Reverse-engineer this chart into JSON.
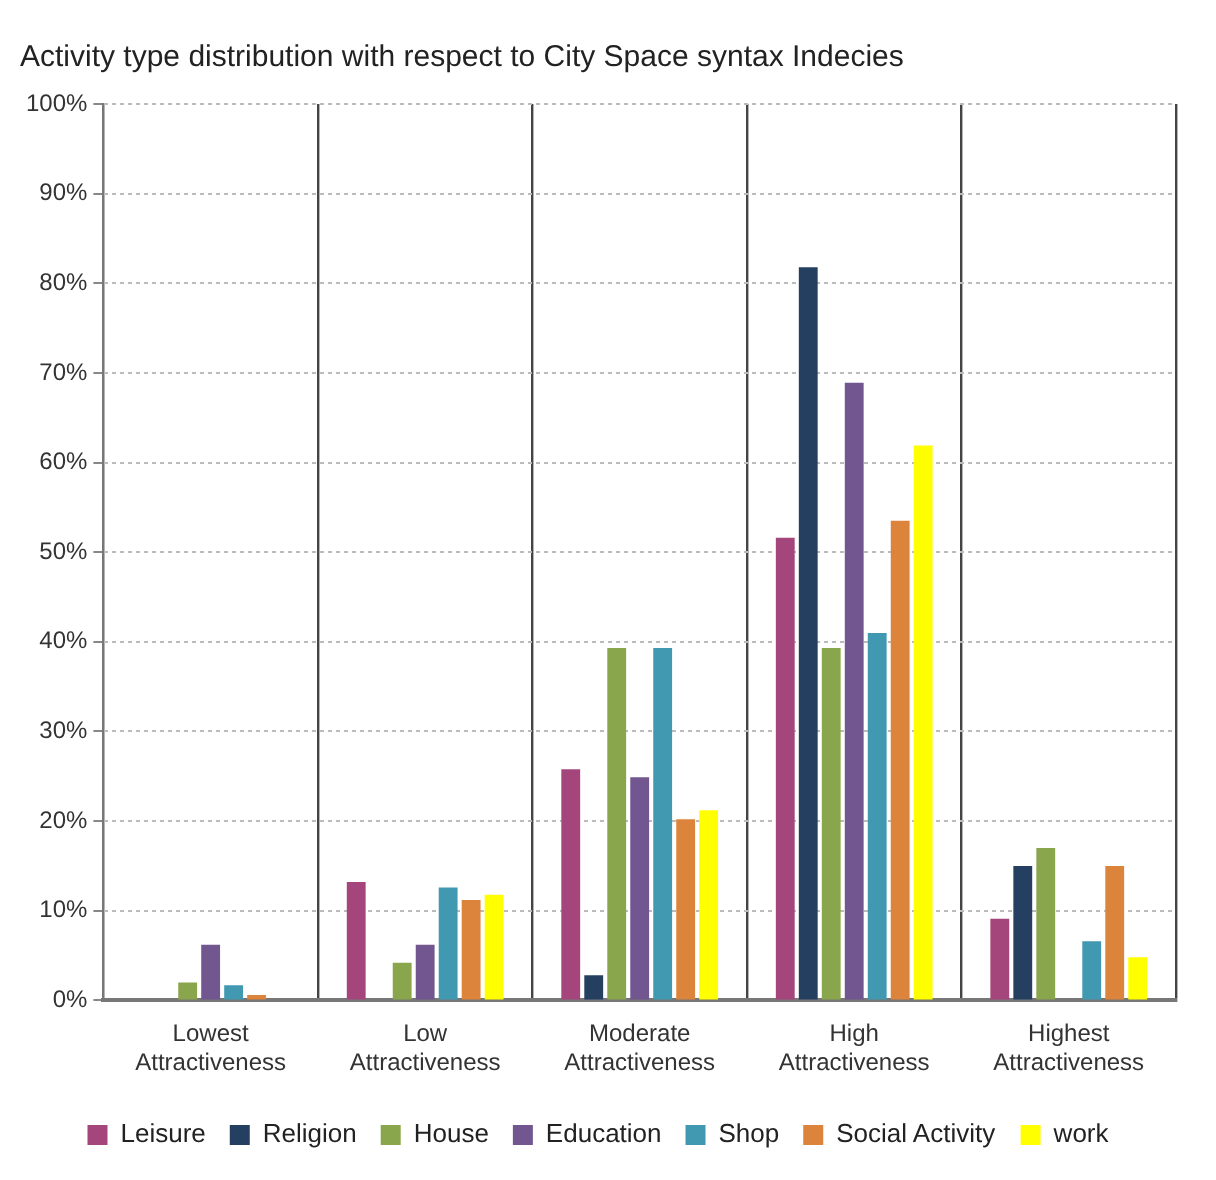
{
  "chart_data": {
    "type": "bar",
    "title": "Activity type distribution with respect to City Space syntax Indecies",
    "categories": [
      "Lowest Attractiveness",
      "Low Attractiveness",
      "Moderate Attractiveness",
      "High Attractiveness",
      "Highest Attractiveness"
    ],
    "series": [
      {
        "name": "Leisure",
        "color": "#a4467c",
        "values": [
          0,
          13.2,
          25.8,
          51.6,
          9.1
        ]
      },
      {
        "name": "Religion",
        "color": "#243f60",
        "values": [
          0,
          0,
          2.8,
          81.8,
          15
        ]
      },
      {
        "name": "House",
        "color": "#8aa64c",
        "values": [
          2,
          4.2,
          39.3,
          39.3,
          17
        ]
      },
      {
        "name": "Education",
        "color": "#71568f",
        "values": [
          6.2,
          6.2,
          24.9,
          68.9,
          0
        ]
      },
      {
        "name": "Shop",
        "color": "#4199b1",
        "values": [
          1.7,
          12.6,
          39.3,
          41,
          6.6
        ]
      },
      {
        "name": "Social Activity",
        "color": "#dd843c",
        "values": [
          0.6,
          11.2,
          20.2,
          53.5,
          15
        ]
      },
      {
        "name": "work",
        "color": "#ffff00",
        "values": [
          0,
          11.8,
          21.2,
          61.9,
          4.8
        ]
      }
    ],
    "ylim": [
      0,
      100
    ],
    "yticks": [
      {
        "value": 0,
        "label": "0%"
      },
      {
        "value": 10,
        "label": "10%"
      },
      {
        "value": 20,
        "label": "20%"
      },
      {
        "value": 30,
        "label": "30%"
      },
      {
        "value": 40,
        "label": "40%"
      },
      {
        "value": 50,
        "label": "50%"
      },
      {
        "value": 60,
        "label": "60%"
      },
      {
        "value": 70,
        "label": "70%"
      },
      {
        "value": 80,
        "label": "80%"
      },
      {
        "value": 90,
        "label": "90%"
      },
      {
        "value": 100,
        "label": "100%"
      }
    ],
    "grid": true,
    "legend": "bottom"
  }
}
